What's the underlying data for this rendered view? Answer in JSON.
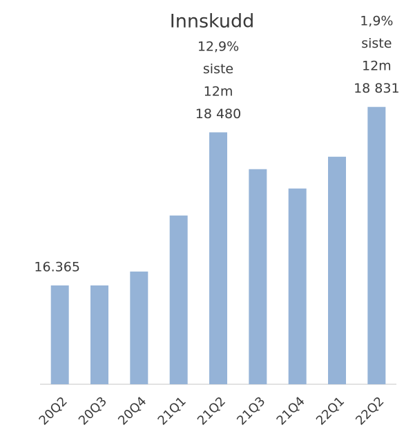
{
  "chart_data": {
    "type": "bar",
    "title": "Innskudd",
    "categories": [
      "20Q2",
      "20Q3",
      "20Q4",
      "21Q1",
      "21Q2",
      "21Q3",
      "21Q4",
      "22Q1",
      "22Q2"
    ],
    "values": [
      16365,
      16365,
      16557,
      17331,
      18480,
      17971,
      17704,
      18143,
      18831
    ],
    "value_labels": [
      "16.365",
      null,
      null,
      null,
      "18 480",
      null,
      null,
      null,
      "18 831"
    ],
    "annotations": [
      {
        "category": "21Q2",
        "lines": [
          "12,9%",
          "siste",
          "12m"
        ]
      },
      {
        "category": "22Q2",
        "lines": [
          "1,9%",
          "siste",
          "12m"
        ]
      }
    ],
    "color": "#95b3d7",
    "ylim": [
      15000,
      19000
    ]
  }
}
